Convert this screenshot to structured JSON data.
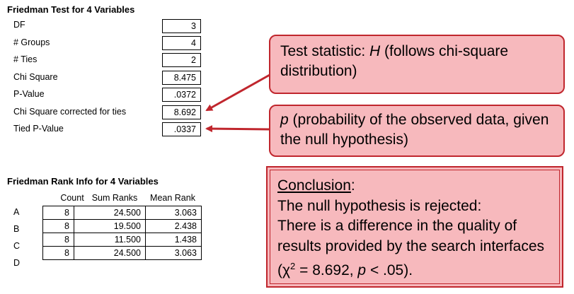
{
  "friedman_test": {
    "title": "Friedman Test for 4 Variables",
    "rows": [
      {
        "label": "DF",
        "value": "3"
      },
      {
        "label": "# Groups",
        "value": "4"
      },
      {
        "label": "# Ties",
        "value": "2"
      },
      {
        "label": "Chi Square",
        "value": "8.475"
      },
      {
        "label": "P-Value",
        "value": ".0372"
      },
      {
        "label": "Chi Square corrected for ties",
        "value": "8.692"
      },
      {
        "label": "Tied P-Value",
        "value": ".0337"
      }
    ]
  },
  "rank_info": {
    "title": "Friedman Rank Info for 4 Variables",
    "headers": [
      "Count",
      "Sum Ranks",
      "Mean Rank"
    ],
    "rows": [
      {
        "label": "A",
        "count": "8",
        "sum_ranks": "24.500",
        "mean_rank": "3.063"
      },
      {
        "label": "B",
        "count": "8",
        "sum_ranks": "19.500",
        "mean_rank": "2.438"
      },
      {
        "label": "C",
        "count": "8",
        "sum_ranks": "11.500",
        "mean_rank": "1.438"
      },
      {
        "label": "D",
        "count": "8",
        "sum_ranks": "24.500",
        "mean_rank": "3.063"
      }
    ]
  },
  "callout_statistic": {
    "prefix": "Test statistic: ",
    "symbol": "H",
    "suffix": " (follows chi-square distribution)"
  },
  "callout_p": {
    "symbol": "p",
    "text": " (probability of the observed data, given the null hypothesis)"
  },
  "conclusion": {
    "heading": "Conclusion",
    "heading_colon": ":",
    "line1": "The null hypothesis is rejected:",
    "line2": "There is a difference in the quality of results provided by the search interfaces (",
    "chi": "χ",
    "sup": "2",
    "eq": " = 8.692, ",
    "p": "p",
    "tail": " < .05)."
  },
  "colors": {
    "callout_fill": "#f7b9bd",
    "callout_border": "#c0262d",
    "arrow": "#c0262d"
  }
}
